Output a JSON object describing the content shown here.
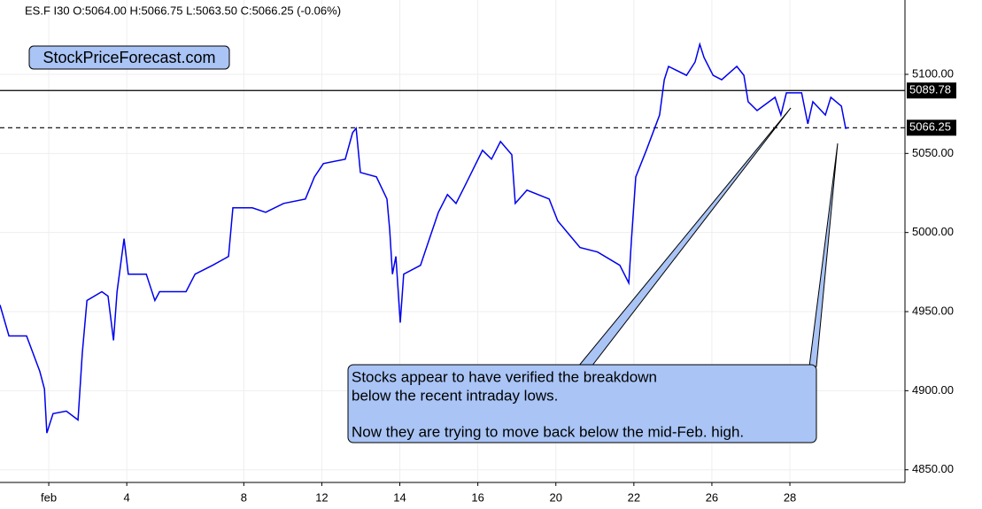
{
  "chart_data": {
    "type": "line",
    "header": "ES.F  I30  O:5064.00  H:5066.75  L:5063.50  C:5066.25  (-0.06%)",
    "watermark": "StockPriceForecast.com",
    "annotation": [
      "Stocks appear to have verified the breakdown",
      "below the recent intraday lows.",
      "Now they are trying to move back below the mid-Feb. high."
    ],
    "xlim": [
      -1.25,
      21.95
    ],
    "xticks": [
      {
        "value": 0,
        "label": "feb"
      },
      {
        "value": 2,
        "label": "4"
      },
      {
        "value": 5,
        "label": "8"
      },
      {
        "value": 7,
        "label": "12"
      },
      {
        "value": 9,
        "label": "14"
      },
      {
        "value": 11,
        "label": "16"
      },
      {
        "value": 13,
        "label": "20"
      },
      {
        "value": 15,
        "label": "22"
      },
      {
        "value": 17,
        "label": "26"
      },
      {
        "value": 19,
        "label": "28"
      }
    ],
    "ylim": [
      4842,
      5147
    ],
    "yticks": [
      {
        "value": 4850,
        "label": "4850.00"
      },
      {
        "value": 4900,
        "label": "4900.00"
      },
      {
        "value": 4950,
        "label": "4950.00"
      },
      {
        "value": 5000,
        "label": "5000.00"
      },
      {
        "value": 5050,
        "label": "5050.00"
      },
      {
        "value": 5100,
        "label": "5100.00"
      }
    ],
    "grid": true,
    "levels": [
      {
        "value": 5089.78,
        "style": "solid"
      },
      {
        "value": 5066.25,
        "style": "dashed"
      }
    ],
    "x": [
      -1.25,
      -1.02,
      -0.57,
      -0.23,
      -0.11,
      -0.05,
      0.11,
      0.45,
      0.75,
      0.86,
      0.98,
      1.36,
      1.52,
      1.66,
      1.75,
      1.93,
      2.04,
      2.5,
      2.72,
      2.84,
      3.52,
      3.75,
      4.2,
      4.61,
      4.72,
      5.22,
      5.56,
      6.02,
      6.58,
      6.81,
      7.04,
      7.6,
      7.79,
      7.88,
      7.99,
      8.4,
      8.67,
      8.74,
      8.81,
      8.9,
      9.01,
      9.1,
      9.53,
      9.76,
      9.99,
      10.22,
      10.44,
      10.67,
      11.12,
      11.35,
      11.58,
      11.87,
      11.96,
      12.26,
      12.83,
      13.05,
      13.62,
      14.07,
      14.64,
      14.87,
      14.94,
      15.05,
      15.32,
      15.66,
      15.78,
      15.89,
      16.35,
      16.57,
      16.69,
      16.8,
      17.03,
      17.25,
      17.64,
      17.82,
      17.93,
      18.16,
      18.62,
      18.77,
      18.91,
      19.3,
      19.46,
      19.59,
      19.91,
      20.05,
      20.32,
      20.43,
      20.5
    ],
    "series": [
      {
        "color": "#0000ee",
        "values": [
          4954.2,
          4934.6,
          4934.6,
          4912.3,
          4901.1,
          4873.2,
          4885.5,
          4887.1,
          4881.5,
          4923.5,
          4957,
          4962.6,
          4959.8,
          4931.8,
          4962.6,
          4996.1,
          4973.7,
          4973.7,
          4957,
          4962.6,
          4962.6,
          4973.7,
          4979.3,
          4984.9,
          5015.6,
          5015.6,
          5012.8,
          5018.4,
          5021.2,
          5035.2,
          5043.6,
          5046.4,
          5063.1,
          5065.9,
          5038,
          5035.2,
          5021.2,
          5001.7,
          4973.7,
          4984.9,
          4943,
          4973.7,
          4979.3,
          4996.1,
          5012.8,
          5024,
          5018.4,
          5029.6,
          5052,
          5046.4,
          5057.5,
          5049.2,
          5018.4,
          5026.8,
          5021.2,
          5007.3,
          4990.5,
          4987.7,
          4979.3,
          4968.1,
          4996.1,
          5035.2,
          5052,
          5074.3,
          5096.6,
          5105,
          5099.4,
          5107.8,
          5119,
          5110.6,
          5099.4,
          5096.6,
          5105,
          5099.4,
          5082.7,
          5077.1,
          5085.5,
          5074.3,
          5088.3,
          5088.3,
          5068.7,
          5082.7,
          5074.3,
          5085.5,
          5079.9,
          5065.9,
          5066.25
        ]
      }
    ]
  }
}
